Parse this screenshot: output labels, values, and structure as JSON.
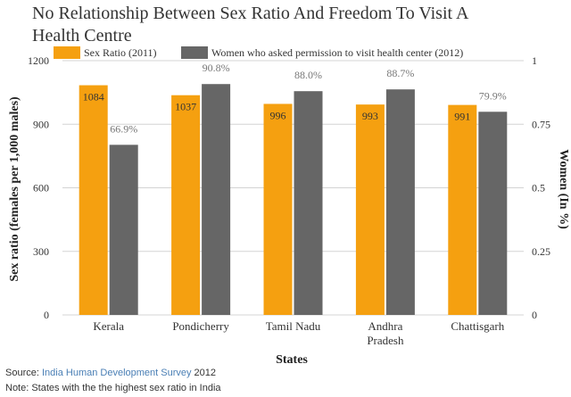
{
  "chart_data": {
    "type": "bar",
    "title_line1": "No Relationship Between Sex Ratio And Freedom To Visit A",
    "title_line2": "Health Centre",
    "categories": [
      "Kerala",
      "Pondicherry",
      "Tamil Nadu",
      "Andhra\nPradesh",
      "Chattisgarh"
    ],
    "series": [
      {
        "name": "Sex Ratio (2011)",
        "axis": "left",
        "color": "#f5a010",
        "values": [
          1084,
          1037,
          996,
          993,
          991
        ],
        "labels": [
          "1084",
          "1037",
          "996",
          "993",
          "991"
        ]
      },
      {
        "name": "Women who asked permission to visit health center (2012)",
        "axis": "right",
        "color": "#666666",
        "values": [
          0.669,
          0.908,
          0.88,
          0.887,
          0.799
        ],
        "labels": [
          "66.9%",
          "90.8%",
          "88.0%",
          "88.7%",
          "79.9%"
        ]
      }
    ],
    "xlabel": "States",
    "ylabel_left": "Sex ratio (females per 1,000 males)",
    "ylabel_right": "Women (In %)",
    "ylim_left": [
      0,
      1200
    ],
    "ylim_right": [
      0,
      1
    ],
    "yticks_left": [
      "0",
      "300",
      "600",
      "900",
      "1200"
    ],
    "yticks_right": [
      "0",
      "0.25",
      "0.5",
      "0.75",
      "1"
    ],
    "grid": true,
    "legend_position": "top"
  },
  "footer": {
    "source_prefix": "Source: ",
    "source_link": "India Human Development Survey",
    "source_suffix": " 2012",
    "note": "Note: States with the the highest sex ratio in India"
  }
}
